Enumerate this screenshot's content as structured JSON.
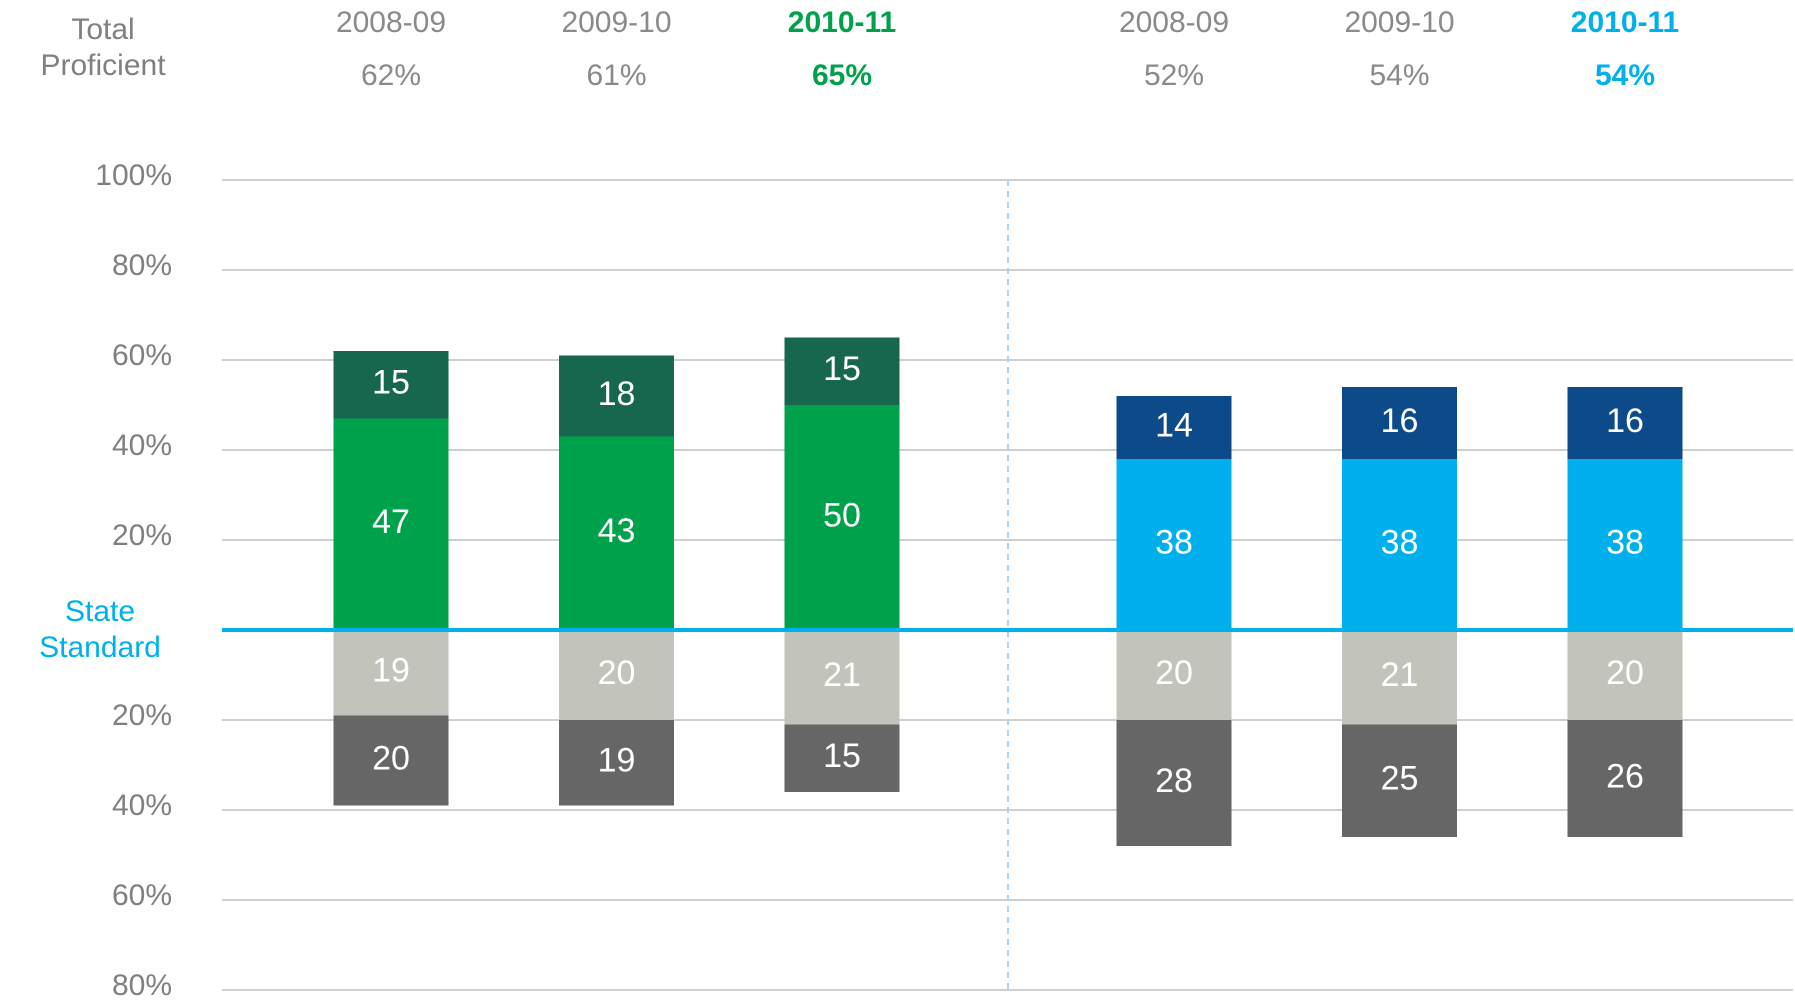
{
  "chart_data": {
    "type": "diverging_stacked_bar",
    "total_label": "Total Proficient",
    "categories": [
      "2008-09",
      "2009-10",
      "2010-11",
      "2008-09",
      "2009-10",
      "2010-11"
    ],
    "header_colors": [
      "#8a8a8a",
      "#8a8a8a",
      "#00a14b",
      "#8a8a8a",
      "#8a8a8a",
      "#00b0ec"
    ],
    "totals": [
      62,
      61,
      65,
      52,
      54,
      54
    ],
    "totals_labels": [
      "62%",
      "61%",
      "65%",
      "52%",
      "54%",
      "54%"
    ],
    "series": [
      {
        "colors": [
          "#00a14b",
          "#00a14b",
          "#00a14b",
          "#00b0ec",
          "#00b0ec",
          "#00b0ec"
        ],
        "values": [
          47,
          43,
          50,
          38,
          38,
          38
        ]
      },
      {
        "colors": [
          "#17664f",
          "#17664f",
          "#17664f",
          "#0d4a8a",
          "#0d4a8a",
          "#0d4a8a"
        ],
        "values": [
          15,
          18,
          15,
          14,
          16,
          16
        ]
      },
      {
        "color": "#c2c3bb",
        "values": [
          -19,
          -20,
          -21,
          -20,
          -21,
          -20
        ],
        "value_labels": [
          "19",
          "20",
          "21",
          "20",
          "21",
          "20"
        ]
      },
      {
        "color": "#666666",
        "values": [
          -20,
          -19,
          -15,
          -28,
          -25,
          -26
        ],
        "value_labels": [
          "20",
          "19",
          "15",
          "28",
          "25",
          "26"
        ]
      }
    ],
    "ylim": [
      -80,
      100
    ],
    "yticks": [
      {
        "value": 100,
        "label": "100%"
      },
      {
        "value": 80,
        "label": "80%"
      },
      {
        "value": 60,
        "label": "60%"
      },
      {
        "value": 40,
        "label": "40%"
      },
      {
        "value": 20,
        "label": "20%"
      },
      {
        "value": 0,
        "label": "State Standard"
      },
      {
        "value": -20,
        "label": "20%"
      },
      {
        "value": -40,
        "label": "40%"
      },
      {
        "value": -60,
        "label": "60%"
      },
      {
        "value": -80,
        "label": "80%"
      }
    ],
    "grid": true,
    "baseline_color": "#00b0ec"
  }
}
